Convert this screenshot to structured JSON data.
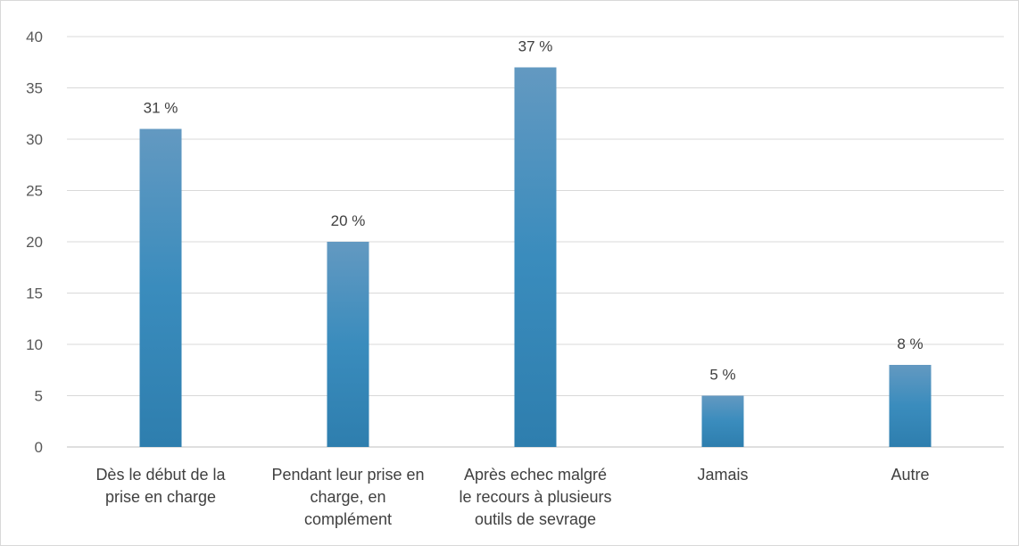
{
  "chart_data": {
    "type": "bar",
    "categories": [
      [
        "Dès le début de la",
        "prise en charge"
      ],
      [
        "Pendant leur prise en",
        "charge, en",
        "complément"
      ],
      [
        "Après echec malgré",
        "le recours à plusieurs",
        "outils de sevrage"
      ],
      [
        "Jamais"
      ],
      [
        "Autre"
      ]
    ],
    "values": [
      31,
      20,
      37,
      5,
      8
    ],
    "data_labels": [
      "31 %",
      "20 %",
      "37 %",
      "5 %",
      "8 %"
    ],
    "ylim": [
      0,
      40
    ],
    "yticks": [
      0,
      5,
      10,
      15,
      20,
      25,
      30,
      35,
      40
    ],
    "grid": true,
    "bar_color_top": "#6399c1",
    "bar_color_bottom": "#2e7eae"
  }
}
